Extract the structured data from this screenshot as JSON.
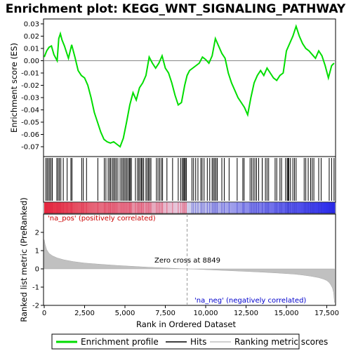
{
  "chart_data": {
    "type": "line",
    "title": "Enrichment plot: KEGG_WNT_SIGNALING_PATHWAY",
    "es_panel": {
      "ylabel": "Enrichment score (ES)",
      "ylim": [
        -0.078,
        0.034
      ],
      "yticks": [
        "0.03",
        "0.02",
        "0.01",
        "0.00",
        "-0.01",
        "-0.02",
        "-0.03",
        "-0.04",
        "-0.05",
        "-0.06",
        "-0.07"
      ],
      "series": [
        {
          "name": "Enrichment profile",
          "color": "#00dd00",
          "x": [
            0,
            150,
            300,
            450,
            600,
            800,
            900,
            1000,
            1100,
            1250,
            1400,
            1500,
            1700,
            1900,
            2100,
            2300,
            2500,
            2700,
            2900,
            3100,
            3300,
            3500,
            3700,
            3900,
            4100,
            4300,
            4500,
            4700,
            4900,
            5100,
            5300,
            5500,
            5700,
            5900,
            6100,
            6300,
            6500,
            6700,
            6900,
            7100,
            7300,
            7500,
            7700,
            7900,
            8100,
            8300,
            8500,
            8700,
            8849,
            9000,
            9200,
            9400,
            9600,
            9800,
            10000,
            10200,
            10400,
            10600,
            10800,
            11000,
            11200,
            11400,
            11600,
            11800,
            12000,
            12200,
            12400,
            12600,
            12800,
            13000,
            13200,
            13400,
            13600,
            13800,
            14000,
            14200,
            14400,
            14600,
            14800,
            15000,
            15200,
            15400,
            15600,
            15800,
            16000,
            16200,
            16400,
            16600,
            16800,
            17000,
            17200,
            17400,
            17600,
            17800,
            17950
          ],
          "values": [
            0.003,
            0.008,
            0.011,
            0.012,
            0.005,
            0.0,
            0.018,
            0.022,
            0.017,
            0.012,
            0.006,
            0.002,
            0.013,
            0.003,
            -0.008,
            -0.012,
            -0.014,
            -0.02,
            -0.03,
            -0.042,
            -0.05,
            -0.058,
            -0.064,
            -0.066,
            -0.067,
            -0.066,
            -0.068,
            -0.07,
            -0.063,
            -0.05,
            -0.036,
            -0.026,
            -0.032,
            -0.022,
            -0.018,
            -0.012,
            0.003,
            -0.002,
            -0.006,
            -0.002,
            0.004,
            -0.006,
            -0.01,
            -0.018,
            -0.028,
            -0.036,
            -0.034,
            -0.02,
            -0.012,
            -0.008,
            -0.006,
            -0.004,
            -0.002,
            0.003,
            0.001,
            -0.002,
            0.004,
            0.018,
            0.012,
            0.006,
            0.002,
            -0.01,
            -0.018,
            -0.024,
            -0.03,
            -0.034,
            -0.038,
            -0.044,
            -0.03,
            -0.018,
            -0.012,
            -0.008,
            -0.012,
            -0.006,
            -0.01,
            -0.014,
            -0.016,
            -0.012,
            -0.01,
            0.008,
            0.014,
            0.02,
            0.028,
            0.02,
            0.014,
            0.01,
            0.008,
            0.005,
            0.002,
            0.008,
            0.004,
            -0.004,
            -0.014,
            -0.004,
            -0.002
          ]
        }
      ]
    },
    "hits_panel": {
      "legend_label": "Hits",
      "hit_positions": [
        100,
        180,
        260,
        340,
        420,
        500,
        780,
        860,
        940,
        1030,
        1180,
        1420,
        1650,
        1720,
        2320,
        2420,
        2620,
        3320,
        3720,
        3820,
        3960,
        4050,
        4120,
        4220,
        4300,
        4380,
        4460,
        4560,
        4700,
        4800,
        4880,
        4960,
        5040,
        5120,
        5200,
        5280,
        5330,
        5400,
        5650,
        5780,
        5860,
        5940,
        6020,
        6080,
        6160,
        6300,
        6380,
        6460,
        6530,
        6610,
        6950,
        7050,
        7150,
        7250,
        7330,
        7600,
        7950,
        8300,
        8450,
        8550,
        8620,
        8680,
        8740,
        8800,
        9150,
        9250,
        9380,
        9520,
        9700,
        9780,
        9900,
        10100,
        10250,
        10400,
        10480,
        10560,
        10640,
        10720,
        11000,
        11150,
        11450,
        11950,
        12300,
        12380,
        12750,
        12850,
        12950,
        13050,
        13150,
        13280,
        13500,
        13700,
        13800,
        13900,
        14300,
        14400,
        14600,
        14700,
        14950,
        15050,
        15100,
        15150,
        15250,
        15400,
        15500,
        15600,
        16100,
        16200,
        16350,
        16500,
        16600,
        16700,
        17000,
        17150,
        17650,
        17800,
        17950
      ]
    },
    "ranked_panel": {
      "ylabel": "Ranked list metric (PreRanked)",
      "ylim": [
        -2,
        3
      ],
      "yticks": [
        "2",
        "1",
        "0",
        "-1",
        "-2"
      ],
      "xlabel": "Rank in Ordered Dataset",
      "xlim": [
        0,
        18000
      ],
      "xticks": [
        "0",
        "2,500",
        "5,000",
        "7,500",
        "10,000",
        "12,500",
        "15,000",
        "17,500"
      ],
      "legend_label": "Ranking metric scores",
      "zero_cross_label": "Zero cross at 8849",
      "zero_cross": 8849,
      "pos_label": "'na_pos' (positively correlated)",
      "neg_label": "'na_neg' (negatively correlated)",
      "pos_color": "#cc0000",
      "neg_color": "#0000cc",
      "x": [
        0,
        50,
        150,
        300,
        500,
        800,
        1200,
        1800,
        2500,
        3500,
        4500,
        5500,
        6500,
        7500,
        8500,
        8849,
        9500,
        10500,
        11500,
        12500,
        13500,
        14500,
        15500,
        16000,
        16500,
        17000,
        17300,
        17500,
        17650,
        17750,
        17850,
        17920,
        17980
      ],
      "values": [
        1.6,
        1.35,
        1.05,
        0.85,
        0.72,
        0.6,
        0.5,
        0.4,
        0.32,
        0.25,
        0.19,
        0.14,
        0.09,
        0.05,
        0.01,
        0.0,
        -0.02,
        -0.06,
        -0.1,
        -0.14,
        -0.18,
        -0.23,
        -0.29,
        -0.34,
        -0.4,
        -0.48,
        -0.56,
        -0.64,
        -0.75,
        -0.88,
        -1.05,
        -1.3,
        -1.85
      ]
    },
    "legend": [
      "Enrichment profile",
      "Hits",
      "Ranking metric scores"
    ]
  }
}
